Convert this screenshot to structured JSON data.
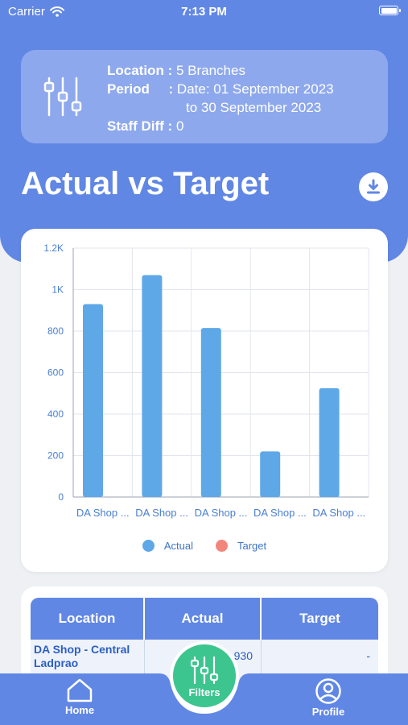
{
  "status_bar": {
    "carrier": "Carrier",
    "time": "7:13 PM"
  },
  "summary": {
    "location_label": "Location :",
    "location_value": " 5 Branches",
    "period_label": "Period     :",
    "period_value": " Date: 01 September 2023",
    "period_value_cont": "to 30 September 2023",
    "staff_diff_label": "Staff Diff :",
    "staff_diff_value": " 0"
  },
  "page": {
    "title": "Actual vs Target"
  },
  "icons": {
    "filter": "sliders-icon",
    "download": "download-icon",
    "home": "home-icon",
    "profile": "user-icon"
  },
  "colors": {
    "primary": "#6187e5",
    "actual": "#5ea8e8",
    "target": "#f2857c",
    "fab": "#3cc58f"
  },
  "chart_data": {
    "type": "bar",
    "categories": [
      "DA Shop ...",
      "DA Shop ...",
      "DA Shop ...",
      "DA Shop ...",
      "DA Shop ..."
    ],
    "series": [
      {
        "name": "Actual",
        "values": [
          930,
          1070,
          815,
          220,
          525
        ]
      },
      {
        "name": "Target",
        "values": [
          0,
          0,
          0,
          0,
          0
        ]
      }
    ],
    "y_ticks": [
      "0",
      "200",
      "400",
      "600",
      "800",
      "1K",
      "1.2K"
    ],
    "ylim": [
      0,
      1200
    ],
    "grid": true,
    "legend": "bottom"
  },
  "table": {
    "headers": [
      "Location",
      "Actual",
      "Target"
    ],
    "rows": [
      {
        "location": "DA Shop - Central Ladprao",
        "actual": "930",
        "target": "-"
      }
    ]
  },
  "tab_bar": {
    "home": "Home",
    "filters": "Filters",
    "profile": "Profile"
  }
}
